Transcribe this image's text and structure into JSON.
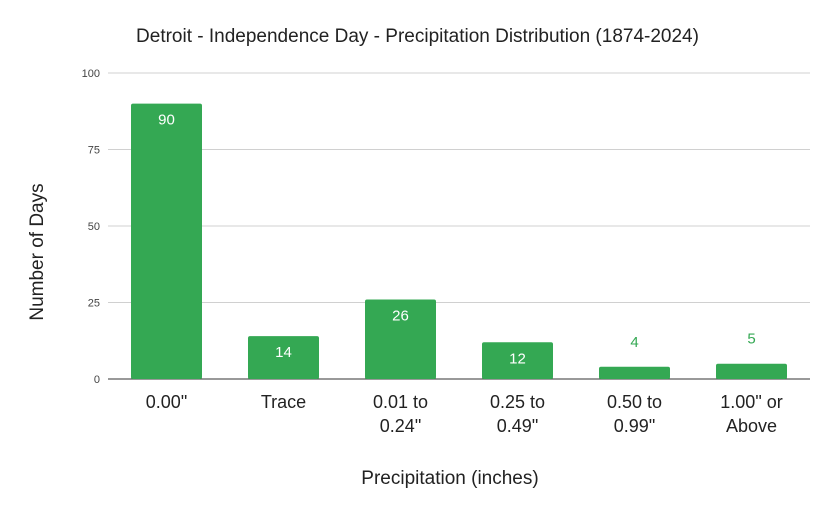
{
  "chart_data": {
    "type": "bar",
    "title": "Detroit - Independence Day - Precipitation Distribution (1874-2024)",
    "xlabel": "Precipitation (inches)",
    "ylabel": "Number of Days",
    "categories": [
      "0.00\"",
      "Trace",
      "0.01 to 0.24\"",
      "0.25 to 0.49\"",
      "0.50 to 0.99\"",
      "1.00\" or Above"
    ],
    "category_lines": [
      [
        "0.00\""
      ],
      [
        "Trace"
      ],
      [
        "0.01 to",
        "0.24\""
      ],
      [
        "0.25 to",
        "0.49\""
      ],
      [
        "0.50 to",
        "0.99\""
      ],
      [
        "1.00\" or",
        "Above"
      ]
    ],
    "values": [
      90,
      14,
      26,
      12,
      4,
      5
    ],
    "ylim": [
      0,
      100
    ],
    "yticks": [
      0,
      25,
      50,
      75,
      100
    ],
    "grid": true,
    "legend": "none",
    "bar_color": "#34a853",
    "inside_label_color": "#ffffff",
    "outside_label_color": "#34a853"
  }
}
